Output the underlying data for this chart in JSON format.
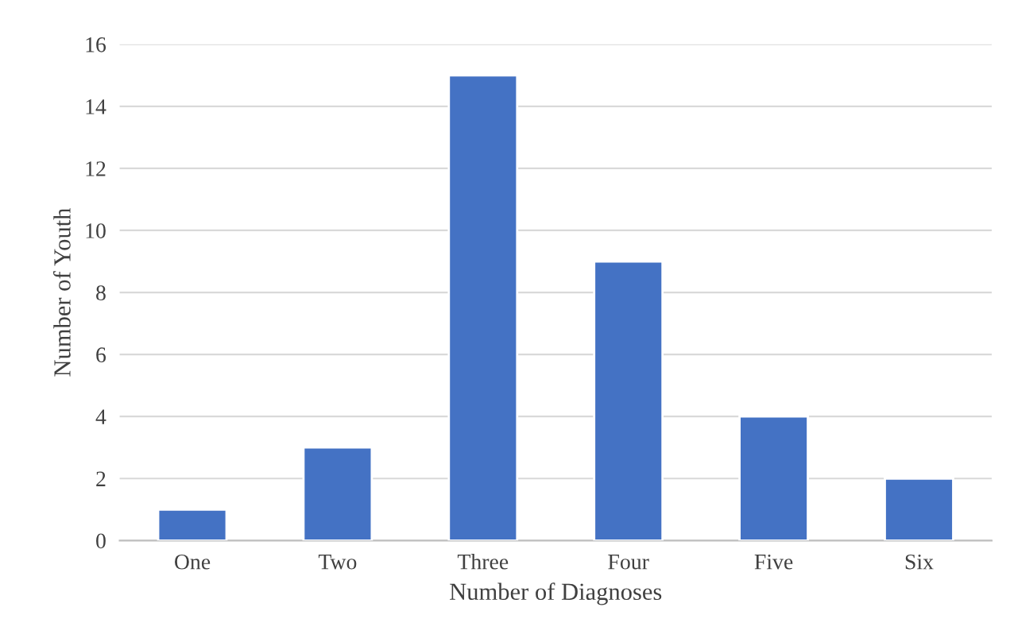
{
  "chart_data": {
    "type": "bar",
    "xlabel": "Number of Diagnoses",
    "ylabel": "Number of Youth",
    "categories": [
      "One",
      "Two",
      "Three",
      "Four",
      "Five",
      "Six"
    ],
    "values": [
      1,
      3,
      15,
      9,
      4,
      2
    ],
    "color": "#4472c4",
    "ylim": [
      0,
      16
    ],
    "yticks": [
      0,
      2,
      4,
      6,
      8,
      10,
      12,
      14,
      16
    ],
    "grid": "y",
    "legend": false
  }
}
